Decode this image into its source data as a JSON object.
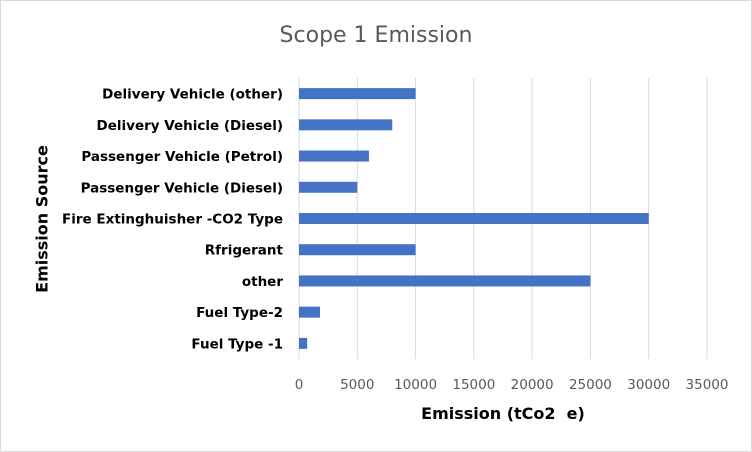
{
  "chart_data": {
    "type": "bar",
    "orientation": "horizontal",
    "title": "Scope 1 Emission",
    "xlabel": "Emission (tCo2  e)",
    "ylabel": "Emission Source",
    "categories": [
      "Fuel Type -1",
      "Fuel Type-2",
      "other",
      "Rfrigerant",
      "Fire Extinghuisher -CO2 Type",
      "Passenger Vehicle (Diesel)",
      "Passenger Vehicle (Petrol)",
      "Delivery Vehicle (Diesel)",
      "Delivery Vehicle (other)"
    ],
    "values": [
      700,
      1800,
      25000,
      10000,
      30000,
      5000,
      6000,
      8000,
      10000
    ],
    "xlim": [
      0,
      35000
    ],
    "xticks": [
      0,
      5000,
      10000,
      15000,
      20000,
      25000,
      30000,
      35000
    ],
    "grid": true,
    "legend": "none",
    "bar_color": "#4472c4",
    "grid_color": "#d9d9d9"
  }
}
